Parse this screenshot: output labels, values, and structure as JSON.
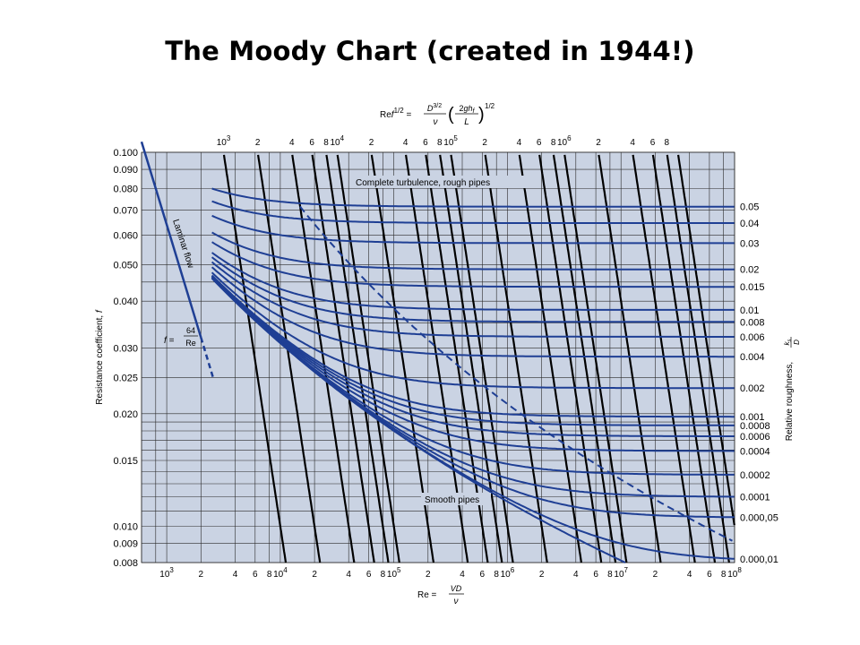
{
  "slide": {
    "title": "The Moody Chart (created in 1944!)"
  },
  "chart_data": {
    "type": "line",
    "title": "The Moody Chart (created in 1944!)",
    "xlabel": "Re = VD/ν",
    "ylabel": "Resistance coefficient, f",
    "y2label": "Relative roughness, ks/D",
    "top_axis_label": "Ref^1/2 = (D^3/2/ν)(2ghf/L)^1/2",
    "x_scale": "log",
    "y_scale": "log",
    "xlim": [
      600,
      100000000
    ],
    "ylim": [
      0.008,
      0.1
    ],
    "grid": true,
    "y_tick_labels": [
      "0.100",
      "0.090",
      "0.080",
      "0.070",
      "0.060",
      "0.050",
      "0.040",
      "0.030",
      "0.025",
      "0.020",
      "0.015",
      "0.010",
      "0.009",
      "0.008"
    ],
    "y_tick_values": [
      0.1,
      0.09,
      0.08,
      0.07,
      0.06,
      0.05,
      0.04,
      0.03,
      0.025,
      0.02,
      0.015,
      0.01,
      0.009,
      0.008
    ],
    "bottom_tick_labels": [
      {
        "value": 1000,
        "mant": "10",
        "exp": "3"
      },
      {
        "value": 2000,
        "mant": "2",
        "exp": ""
      },
      {
        "value": 4000,
        "mant": "4",
        "exp": ""
      },
      {
        "value": 6000,
        "mant": "6",
        "exp": ""
      },
      {
        "value": 8000,
        "mant": "8",
        "exp": ""
      },
      {
        "value": 10000,
        "mant": "10",
        "exp": "4"
      },
      {
        "value": 20000,
        "mant": "2",
        "exp": ""
      },
      {
        "value": 40000,
        "mant": "4",
        "exp": ""
      },
      {
        "value": 60000,
        "mant": "6",
        "exp": ""
      },
      {
        "value": 80000,
        "mant": "8",
        "exp": ""
      },
      {
        "value": 100000,
        "mant": "10",
        "exp": "5"
      },
      {
        "value": 200000,
        "mant": "2",
        "exp": ""
      },
      {
        "value": 400000,
        "mant": "4",
        "exp": ""
      },
      {
        "value": 600000,
        "mant": "6",
        "exp": ""
      },
      {
        "value": 800000,
        "mant": "8",
        "exp": ""
      },
      {
        "value": 1000000,
        "mant": "10",
        "exp": "6"
      },
      {
        "value": 2000000,
        "mant": "2",
        "exp": ""
      },
      {
        "value": 4000000,
        "mant": "4",
        "exp": ""
      },
      {
        "value": 6000000,
        "mant": "6",
        "exp": ""
      },
      {
        "value": 8000000,
        "mant": "8",
        "exp": ""
      },
      {
        "value": 10000000,
        "mant": "10",
        "exp": "7"
      },
      {
        "value": 20000000,
        "mant": "2",
        "exp": ""
      },
      {
        "value": 40000000,
        "mant": "4",
        "exp": ""
      },
      {
        "value": 60000000,
        "mant": "6",
        "exp": ""
      },
      {
        "value": 80000000,
        "mant": "8",
        "exp": ""
      },
      {
        "value": 100000000,
        "mant": "10",
        "exp": "8"
      }
    ],
    "top_tick_labels": [
      {
        "value": 1000,
        "mant": "10",
        "exp": "3"
      },
      {
        "value": 2000,
        "mant": "2",
        "exp": ""
      },
      {
        "value": 4000,
        "mant": "4",
        "exp": ""
      },
      {
        "value": 6000,
        "mant": "6",
        "exp": ""
      },
      {
        "value": 8000,
        "mant": "8",
        "exp": ""
      },
      {
        "value": 10000,
        "mant": "10",
        "exp": "4"
      },
      {
        "value": 20000,
        "mant": "2",
        "exp": ""
      },
      {
        "value": 40000,
        "mant": "4",
        "exp": ""
      },
      {
        "value": 60000,
        "mant": "6",
        "exp": ""
      },
      {
        "value": 80000,
        "mant": "8",
        "exp": ""
      },
      {
        "value": 100000,
        "mant": "10",
        "exp": "5"
      },
      {
        "value": 200000,
        "mant": "2",
        "exp": ""
      },
      {
        "value": 400000,
        "mant": "4",
        "exp": ""
      },
      {
        "value": 600000,
        "mant": "6",
        "exp": ""
      },
      {
        "value": 800000,
        "mant": "8",
        "exp": ""
      },
      {
        "value": 1000000,
        "mant": "10",
        "exp": "6"
      },
      {
        "value": 2000000,
        "mant": "2",
        "exp": ""
      },
      {
        "value": 4000000,
        "mant": "4",
        "exp": ""
      },
      {
        "value": 6000000,
        "mant": "6",
        "exp": ""
      },
      {
        "value": 8000000,
        "mant": "8",
        "exp": ""
      }
    ],
    "top_axis_line_values": [
      1000,
      2000,
      4000,
      6000,
      8000,
      10000,
      20000,
      40000,
      60000,
      80000,
      100000,
      200000,
      400000,
      600000,
      800000,
      1000000,
      2000000,
      4000000,
      6000000,
      8000000,
      10000000
    ],
    "roughness_curves": [
      {
        "label": "0.05",
        "ks_over_D": 0.05
      },
      {
        "label": "0.04",
        "ks_over_D": 0.04
      },
      {
        "label": "0.03",
        "ks_over_D": 0.03
      },
      {
        "label": "0.02",
        "ks_over_D": 0.02
      },
      {
        "label": "0.015",
        "ks_over_D": 0.015
      },
      {
        "label": "0.01",
        "ks_over_D": 0.01
      },
      {
        "label": "0.008",
        "ks_over_D": 0.008
      },
      {
        "label": "0.006",
        "ks_over_D": 0.006
      },
      {
        "label": "0.004",
        "ks_over_D": 0.004
      },
      {
        "label": "0.002",
        "ks_over_D": 0.002
      },
      {
        "label": "0.001",
        "ks_over_D": 0.001
      },
      {
        "label": "0.0008",
        "ks_over_D": 0.0008
      },
      {
        "label": "0.0006",
        "ks_over_D": 0.0006
      },
      {
        "label": "0.0004",
        "ks_over_D": 0.0004
      },
      {
        "label": "0.0002",
        "ks_over_D": 0.0002
      },
      {
        "label": "0.0001",
        "ks_over_D": 0.0001
      },
      {
        "label": "0.000,05",
        "ks_over_D": 5e-05
      },
      {
        "label": "0.000,01",
        "ks_over_D": 1e-05
      }
    ],
    "turbulent_start_Re": 2500,
    "laminar": {
      "x": [
        600,
        2000
      ],
      "f": [
        0.1067,
        0.032
      ]
    },
    "laminar_dashed": {
      "x": [
        2000,
        2600
      ],
      "f": [
        0.032,
        0.0246
      ]
    },
    "annotations": {
      "laminar": "Laminar flow",
      "laminar_formula_lhs": "f =",
      "laminar_formula_num": "64",
      "laminar_formula_den": "Re",
      "complete_turbulence": "Complete turbulence, rough pipes",
      "smooth": "Smooth pipes"
    },
    "colors": {
      "background": "#cad3e3",
      "curves": "#1f3f94",
      "grid": "#2a2a2a",
      "top_lines": "#000000"
    }
  }
}
